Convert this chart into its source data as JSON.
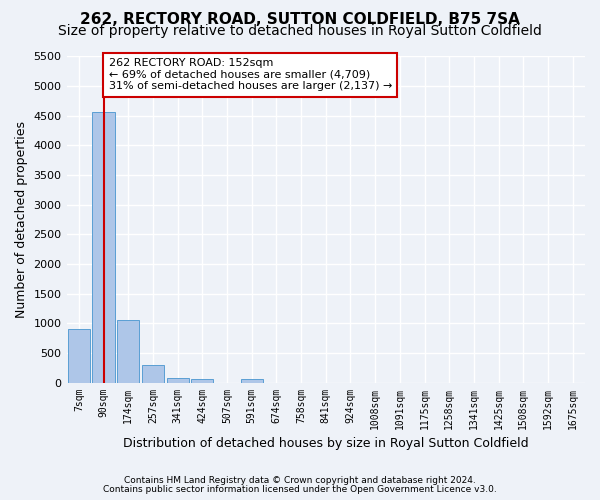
{
  "title": "262, RECTORY ROAD, SUTTON COLDFIELD, B75 7SA",
  "subtitle": "Size of property relative to detached houses in Royal Sutton Coldfield",
  "xlabel": "Distribution of detached houses by size in Royal Sutton Coldfield",
  "ylabel": "Number of detached properties",
  "bin_labels": [
    "7sqm",
    "90sqm",
    "174sqm",
    "257sqm",
    "341sqm",
    "424sqm",
    "507sqm",
    "591sqm",
    "674sqm",
    "758sqm",
    "841sqm",
    "924sqm",
    "1008sqm",
    "1091sqm",
    "1175sqm",
    "1258sqm",
    "1341sqm",
    "1425sqm",
    "1508sqm",
    "1592sqm",
    "1675sqm"
  ],
  "bar_values": [
    900,
    4560,
    1060,
    300,
    80,
    60,
    0,
    60,
    0,
    0,
    0,
    0,
    0,
    0,
    0,
    0,
    0,
    0,
    0,
    0,
    0
  ],
  "bar_color": "#aec6e8",
  "bar_edge_color": "#5a9fd4",
  "property_bin_index": 1,
  "annotation_text": "262 RECTORY ROAD: 152sqm\n← 69% of detached houses are smaller (4,709)\n31% of semi-detached houses are larger (2,137) →",
  "ylim": [
    0,
    5500
  ],
  "yticks": [
    0,
    500,
    1000,
    1500,
    2000,
    2500,
    3000,
    3500,
    4000,
    4500,
    5000,
    5500
  ],
  "footer1": "Contains HM Land Registry data © Crown copyright and database right 2024.",
  "footer2": "Contains public sector information licensed under the Open Government Licence v3.0.",
  "bg_color": "#eef2f8",
  "grid_color": "#ffffff",
  "title_fontsize": 11,
  "subtitle_fontsize": 10,
  "annotation_box_color": "#ffffff",
  "annotation_box_edge": "#cc0000",
  "red_line_color": "#cc0000"
}
